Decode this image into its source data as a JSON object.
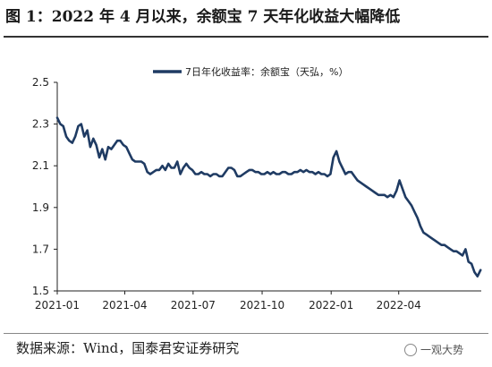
{
  "figure": {
    "title": "图 1：2022 年 4 月以来，余额宝 7 天年化收益大幅降低",
    "source": "数据来源：Wind，国泰君安证券研究",
    "watermark": "一观大势",
    "watermark_icon": "wechat-icon"
  },
  "colors": {
    "line": "#1f3b63",
    "axis": "#222222",
    "text": "#222222"
  },
  "chart_data": {
    "type": "line",
    "title": "图 1：2022 年 4 月以来，余额宝 7 天年化收益大幅降低",
    "xlabel": "",
    "ylabel": "",
    "ylim": [
      1.5,
      2.5
    ],
    "yticks": [
      2.5,
      2.3,
      2.1,
      1.9,
      1.7,
      1.5
    ],
    "ytick_labels": [
      "2.5",
      "2.3",
      "2.1",
      "1.9",
      "1.7",
      "1.5"
    ],
    "xlim": [
      "2021-01-01",
      "2022-07-20"
    ],
    "xticks": [
      "2021-01-01",
      "2021-04-01",
      "2021-07-01",
      "2021-10-01",
      "2022-01-01",
      "2022-04-01"
    ],
    "xtick_labels": [
      "2021-01",
      "2021-04",
      "2021-07",
      "2021-10",
      "2022-01",
      "2022-04"
    ],
    "grid": false,
    "legend": {
      "position": "top-center"
    },
    "series": [
      {
        "name": "7日年化收益率：余额宝（天弘，%）",
        "color": "#1f3b63",
        "x": [
          "2021-01-01",
          "2021-01-05",
          "2021-01-09",
          "2021-01-13",
          "2021-01-17",
          "2021-01-21",
          "2021-01-25",
          "2021-01-29",
          "2021-02-02",
          "2021-02-06",
          "2021-02-10",
          "2021-02-14",
          "2021-02-18",
          "2021-02-22",
          "2021-02-26",
          "2021-03-02",
          "2021-03-06",
          "2021-03-10",
          "2021-03-14",
          "2021-03-18",
          "2021-03-22",
          "2021-03-26",
          "2021-03-30",
          "2021-04-03",
          "2021-04-07",
          "2021-04-11",
          "2021-04-15",
          "2021-04-19",
          "2021-04-23",
          "2021-04-27",
          "2021-05-01",
          "2021-05-05",
          "2021-05-09",
          "2021-05-13",
          "2021-05-17",
          "2021-05-21",
          "2021-05-25",
          "2021-05-29",
          "2021-06-02",
          "2021-06-06",
          "2021-06-10",
          "2021-06-14",
          "2021-06-18",
          "2021-06-22",
          "2021-06-26",
          "2021-06-30",
          "2021-07-04",
          "2021-07-08",
          "2021-07-12",
          "2021-07-16",
          "2021-07-20",
          "2021-07-24",
          "2021-07-28",
          "2021-08-01",
          "2021-08-05",
          "2021-08-09",
          "2021-08-13",
          "2021-08-17",
          "2021-08-21",
          "2021-08-25",
          "2021-08-29",
          "2021-09-02",
          "2021-09-06",
          "2021-09-10",
          "2021-09-14",
          "2021-09-18",
          "2021-09-22",
          "2021-09-26",
          "2021-09-30",
          "2021-10-04",
          "2021-10-08",
          "2021-10-12",
          "2021-10-16",
          "2021-10-20",
          "2021-10-24",
          "2021-10-28",
          "2021-11-01",
          "2021-11-05",
          "2021-11-09",
          "2021-11-13",
          "2021-11-17",
          "2021-11-21",
          "2021-11-25",
          "2021-11-29",
          "2021-12-03",
          "2021-12-07",
          "2021-12-11",
          "2021-12-15",
          "2021-12-19",
          "2021-12-23",
          "2021-12-27",
          "2021-12-31",
          "2022-01-04",
          "2022-01-08",
          "2022-01-12",
          "2022-01-16",
          "2022-01-20",
          "2022-01-24",
          "2022-01-28",
          "2022-02-01",
          "2022-02-05",
          "2022-02-09",
          "2022-02-13",
          "2022-02-17",
          "2022-02-21",
          "2022-02-25",
          "2022-03-01",
          "2022-03-05",
          "2022-03-09",
          "2022-03-13",
          "2022-03-17",
          "2022-03-21",
          "2022-03-25",
          "2022-03-29",
          "2022-04-02",
          "2022-04-06",
          "2022-04-10",
          "2022-04-14",
          "2022-04-18",
          "2022-04-22",
          "2022-04-26",
          "2022-04-30",
          "2022-05-04",
          "2022-05-08",
          "2022-05-12",
          "2022-05-16",
          "2022-05-20",
          "2022-05-24",
          "2022-05-28",
          "2022-06-01",
          "2022-06-05",
          "2022-06-09",
          "2022-06-13",
          "2022-06-17",
          "2022-06-21",
          "2022-06-25",
          "2022-06-29",
          "2022-07-03",
          "2022-07-07",
          "2022-07-11",
          "2022-07-15",
          "2022-07-19"
        ],
        "y": [
          2.33,
          2.3,
          2.29,
          2.24,
          2.22,
          2.21,
          2.24,
          2.29,
          2.3,
          2.24,
          2.27,
          2.19,
          2.23,
          2.2,
          2.14,
          2.18,
          2.13,
          2.19,
          2.18,
          2.2,
          2.22,
          2.22,
          2.2,
          2.19,
          2.16,
          2.13,
          2.12,
          2.12,
          2.12,
          2.11,
          2.07,
          2.06,
          2.07,
          2.08,
          2.08,
          2.1,
          2.08,
          2.11,
          2.09,
          2.09,
          2.12,
          2.06,
          2.09,
          2.11,
          2.09,
          2.08,
          2.06,
          2.06,
          2.07,
          2.06,
          2.06,
          2.05,
          2.06,
          2.06,
          2.05,
          2.05,
          2.07,
          2.09,
          2.09,
          2.08,
          2.05,
          2.05,
          2.06,
          2.07,
          2.08,
          2.08,
          2.07,
          2.07,
          2.06,
          2.06,
          2.07,
          2.06,
          2.07,
          2.06,
          2.06,
          2.07,
          2.07,
          2.06,
          2.06,
          2.07,
          2.07,
          2.08,
          2.07,
          2.08,
          2.07,
          2.07,
          2.06,
          2.07,
          2.06,
          2.06,
          2.05,
          2.06,
          2.14,
          2.17,
          2.12,
          2.09,
          2.06,
          2.07,
          2.07,
          2.05,
          2.03,
          2.02,
          2.01,
          2.0,
          1.99,
          1.98,
          1.97,
          1.96,
          1.96,
          1.96,
          1.95,
          1.96,
          1.95,
          1.98,
          2.03,
          1.99,
          1.95,
          1.93,
          1.91,
          1.88,
          1.85,
          1.81,
          1.78,
          1.77,
          1.76,
          1.75,
          1.74,
          1.73,
          1.72,
          1.72,
          1.71,
          1.7,
          1.69,
          1.69,
          1.68,
          1.67,
          1.7,
          1.64,
          1.63,
          1.59,
          1.57,
          1.6
        ]
      }
    ]
  }
}
